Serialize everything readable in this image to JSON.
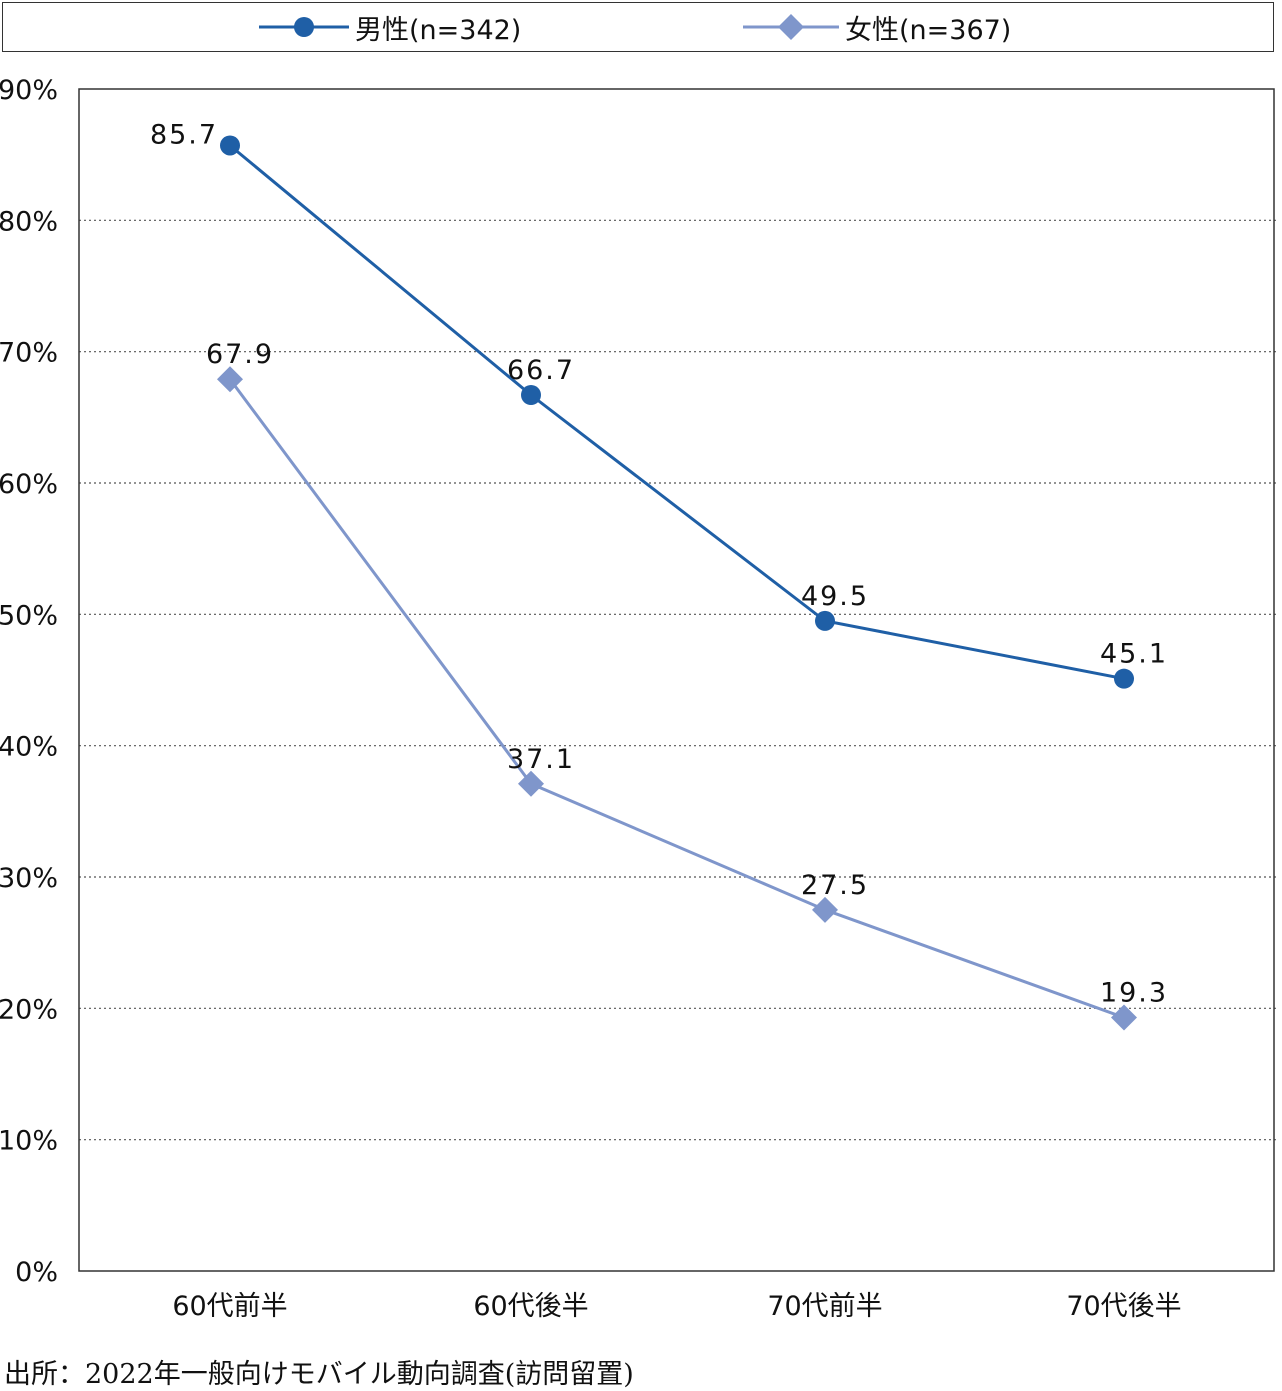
{
  "colors": {
    "male": "#1f5fa6",
    "female": "#7f96cb",
    "grid": "#555555",
    "frame": "#333333"
  },
  "chart_data": {
    "type": "line",
    "categories": [
      "60代前半",
      "60代後半",
      "70代前半",
      "70代後半"
    ],
    "series": [
      {
        "name": "男性(n=342)",
        "values": [
          85.7,
          66.7,
          49.5,
          45.1
        ],
        "data_labels": [
          "85.7",
          "66.7",
          "49.5",
          "45.1"
        ],
        "marker": "circle",
        "color": "#1f5fa6"
      },
      {
        "name": "女性(n=367)",
        "values": [
          67.9,
          37.1,
          27.5,
          19.3
        ],
        "data_labels": [
          "67.9",
          "37.1",
          "27.5",
          "19.3"
        ],
        "marker": "diamond",
        "color": "#7f96cb"
      }
    ],
    "ylim": [
      0,
      90
    ],
    "y_ticks": [
      0,
      10,
      20,
      30,
      40,
      50,
      60,
      70,
      80,
      90
    ],
    "y_tick_labels": [
      "0%",
      "10%",
      "20%",
      "30%",
      "40%",
      "50%",
      "60%",
      "70%",
      "80%",
      "90%"
    ],
    "grid": "horizontal-dotted",
    "legend_position": "top"
  },
  "legend": {
    "male_label": "男性(n=342)",
    "female_label": "女性(n=367)"
  },
  "source": "出所：2022年一般向けモバイル動向調査(訪問留置)"
}
